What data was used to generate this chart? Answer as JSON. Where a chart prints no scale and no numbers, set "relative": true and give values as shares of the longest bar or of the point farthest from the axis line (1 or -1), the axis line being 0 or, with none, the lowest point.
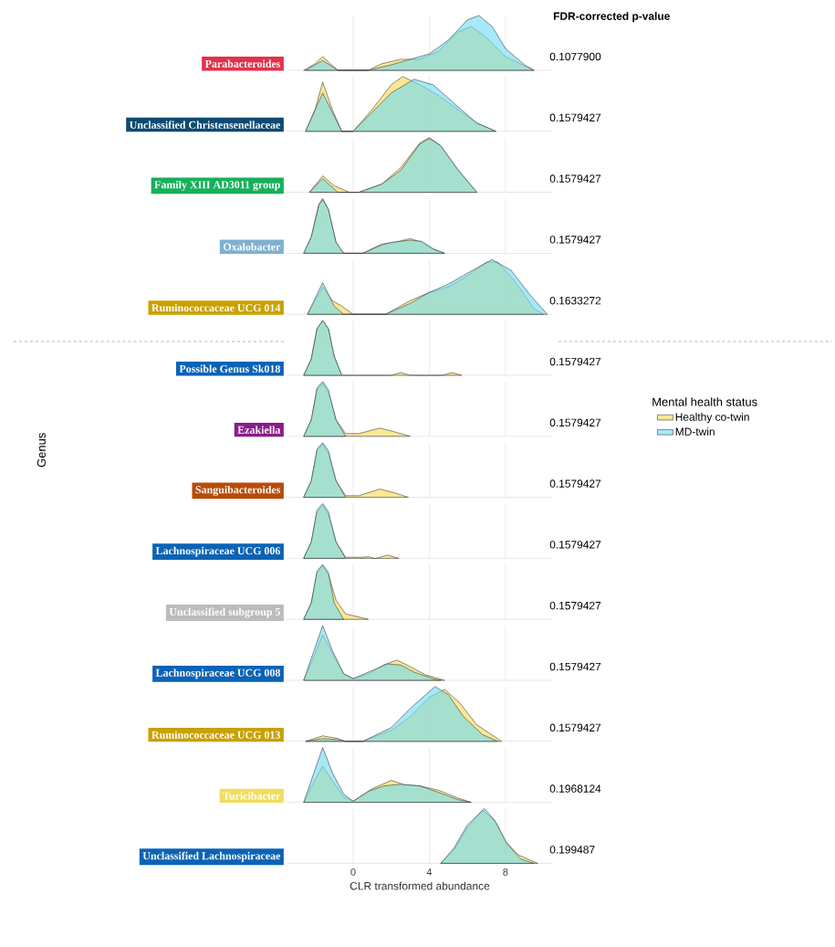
{
  "chart_data": [
    {
      "type": "area",
      "relative": true,
      "title": "Parabacteroides",
      "annotations": [
        "FDR-corrected p-value",
        "0.1077900"
      ],
      "xlim": [
        -3.5,
        10.5
      ],
      "xticks": [
        0,
        4,
        8
      ],
      "grid": "x",
      "tick_labels": false,
      "series": [
        {
          "color": "#fbd94f",
          "x": [
            -2.6,
            -2,
            -1.6,
            -1.2,
            -0.8,
            0.8,
            1.5,
            2.5,
            3.5,
            4.5,
            5.5,
            6.2,
            7,
            8,
            9.5
          ],
          "values": [
            0,
            0.12,
            0.25,
            0.12,
            0,
            0,
            0.12,
            0.2,
            0.2,
            0.35,
            0.7,
            0.8,
            0.6,
            0.25,
            0
          ]
        },
        {
          "color": "#6fdcf5",
          "x": [
            -2.5,
            -1.6,
            -0.8,
            0.8,
            2,
            3,
            4,
            5,
            6,
            6.6,
            7.3,
            8,
            9,
            9.5
          ],
          "values": [
            0,
            0.18,
            0,
            0,
            0.1,
            0.2,
            0.3,
            0.55,
            0.92,
            1,
            0.8,
            0.4,
            0.1,
            0
          ]
        }
      ]
    },
    {
      "type": "area",
      "relative": true,
      "title": "Unclassified Christensenellaceae",
      "annotations": [
        "0.1579427"
      ],
      "xlim": [
        -3.5,
        10.5
      ],
      "xticks": [
        0,
        4,
        8
      ],
      "grid": "x",
      "tick_labels": false,
      "series": [
        {
          "color": "#fbd94f",
          "x": [
            -2.5,
            -2,
            -1.6,
            -1.1,
            -0.6,
            0,
            1,
            2,
            2.6,
            3.5,
            4.5,
            5.5,
            6.5,
            7.5
          ],
          "values": [
            0,
            0.4,
            0.9,
            0.4,
            0,
            0,
            0.4,
            0.85,
            1,
            0.85,
            0.65,
            0.4,
            0.15,
            0
          ]
        },
        {
          "color": "#6fdcf5",
          "x": [
            -2.5,
            -1.6,
            -0.6,
            0,
            1,
            2,
            3.2,
            4.2,
            5.5,
            6.5,
            7.5
          ],
          "values": [
            0,
            0.7,
            0,
            0,
            0.35,
            0.7,
            0.95,
            0.85,
            0.45,
            0.15,
            0
          ]
        }
      ]
    },
    {
      "type": "area",
      "relative": true,
      "title": "Family XIII AD3011 group",
      "annotations": [
        "0.1579427"
      ],
      "xlim": [
        -3.5,
        10.5
      ],
      "xticks": [
        0,
        4,
        8
      ],
      "grid": "x",
      "tick_labels": false,
      "series": [
        {
          "color": "#fbd94f",
          "x": [
            -2.3,
            -1.6,
            -1,
            -0.2,
            0.3,
            1.5,
            2.5,
            3.5,
            4,
            4.6,
            5.5,
            6.5
          ],
          "values": [
            0,
            0.3,
            0.12,
            0,
            0,
            0.15,
            0.45,
            0.9,
            1,
            0.85,
            0.4,
            0
          ]
        },
        {
          "color": "#6fdcf5",
          "x": [
            -2.3,
            -1.6,
            -0.8,
            0.3,
            1.5,
            2.5,
            3.5,
            4,
            4.6,
            5.5,
            6.5
          ],
          "values": [
            0,
            0.25,
            0,
            0,
            0.15,
            0.4,
            0.88,
            0.98,
            0.85,
            0.42,
            0
          ]
        }
      ]
    },
    {
      "type": "area",
      "relative": true,
      "title": "Oxalobacter",
      "annotations": [
        "0.1579427"
      ],
      "xlim": [
        -3.5,
        10.5
      ],
      "xticks": [
        0,
        4,
        8
      ],
      "grid": "x",
      "tick_labels": false,
      "series": [
        {
          "color": "#fbd94f",
          "x": [
            -2.6,
            -2.2,
            -1.8,
            -1.6,
            -1.3,
            -0.9,
            -0.5,
            0.5,
            1.5,
            2.2,
            3,
            3.6,
            4.2,
            4.8
          ],
          "values": [
            0,
            0.3,
            0.9,
            1,
            0.8,
            0.2,
            0,
            0,
            0.17,
            0.2,
            0.27,
            0.2,
            0.08,
            0
          ]
        },
        {
          "color": "#6fdcf5",
          "x": [
            -2.6,
            -2.2,
            -1.8,
            -1.6,
            -1.3,
            -0.9,
            -0.5,
            0.5,
            1.5,
            2,
            3,
            3.6,
            4.2,
            4.8
          ],
          "values": [
            0,
            0.3,
            0.88,
            0.98,
            0.8,
            0.2,
            0,
            0,
            0.15,
            0.2,
            0.24,
            0.22,
            0.08,
            0
          ]
        }
      ]
    },
    {
      "type": "area",
      "relative": true,
      "title": "Ruminococcaceae UCG 014",
      "annotations": [
        "0.1633272"
      ],
      "xlim": [
        -3.5,
        10.5
      ],
      "xticks": [
        0,
        4,
        8
      ],
      "grid": "x",
      "tick_labels": false,
      "series": [
        {
          "color": "#fbd94f",
          "x": [
            -2.4,
            -1.6,
            -1.1,
            -0.6,
            0,
            1.7,
            3,
            4,
            5,
            6,
            7,
            7.6,
            8.5,
            9.5,
            10
          ],
          "values": [
            0,
            0.5,
            0.25,
            0.15,
            0,
            0,
            0.25,
            0.4,
            0.5,
            0.7,
            0.95,
            0.95,
            0.6,
            0.1,
            0
          ]
        },
        {
          "color": "#6fdcf5",
          "x": [
            -2.4,
            -1.6,
            -1,
            -0.5,
            1.7,
            3,
            4,
            5,
            6,
            7.3,
            8.3,
            9.3,
            10.2
          ],
          "values": [
            0,
            0.58,
            0.15,
            0,
            0,
            0.2,
            0.4,
            0.55,
            0.75,
            1,
            0.8,
            0.35,
            0
          ]
        }
      ]
    },
    {
      "type": "area",
      "relative": true,
      "title": "Possible Genus Sk018",
      "annotations": [
        "0.1579427"
      ],
      "xlim": [
        -3.5,
        10.5
      ],
      "xticks": [
        0,
        4,
        8
      ],
      "grid": "x",
      "tick_labels": false,
      "series": [
        {
          "color": "#fbd94f",
          "x": [
            -2.6,
            -2.2,
            -1.9,
            -1.6,
            -1.3,
            -1,
            -0.6,
            2,
            2.5,
            3,
            4.7,
            5.2,
            5.7
          ],
          "values": [
            0,
            0.3,
            0.85,
            1,
            0.85,
            0.35,
            0,
            0,
            0.05,
            0,
            0,
            0.05,
            0
          ]
        },
        {
          "color": "#6fdcf5",
          "x": [
            -2.6,
            -2.2,
            -1.9,
            -1.6,
            -1.3,
            -1,
            -0.6
          ],
          "values": [
            0,
            0.3,
            0.85,
            1,
            0.85,
            0.35,
            0
          ]
        }
      ]
    },
    {
      "type": "area",
      "relative": true,
      "title": "Ezakiella",
      "annotations": [
        "0.1579427"
      ],
      "ylabel": "Genus",
      "legend_title": "Mental health status",
      "legend": "right",
      "xlim": [
        -3.5,
        10.5
      ],
      "xticks": [
        0,
        4,
        8
      ],
      "grid": "x",
      "tick_labels": false,
      "series": [
        {
          "name": "Healthy co-twin",
          "color": "#fbd94f",
          "x": [
            -2.6,
            -2.2,
            -1.9,
            -1.6,
            -1.3,
            -0.9,
            -0.4,
            0.3,
            1.4,
            2.2,
            3
          ],
          "values": [
            0,
            0.3,
            0.85,
            0.97,
            0.8,
            0.3,
            0.05,
            0.05,
            0.15,
            0.08,
            0
          ]
        },
        {
          "name": "MD-twin",
          "color": "#6fdcf5",
          "x": [
            -2.6,
            -2.2,
            -1.9,
            -1.6,
            -1.3,
            -0.9,
            -0.4
          ],
          "values": [
            0,
            0.3,
            0.88,
            1,
            0.85,
            0.3,
            0
          ]
        }
      ]
    },
    {
      "type": "area",
      "relative": true,
      "title": "Sanguibacteroides",
      "annotations": [
        "0.1579427"
      ],
      "xlim": [
        -3.5,
        10.5
      ],
      "xticks": [
        0,
        4,
        8
      ],
      "grid": "x",
      "tick_labels": false,
      "series": [
        {
          "color": "#fbd94f",
          "x": [
            -2.6,
            -2.2,
            -1.9,
            -1.6,
            -1.3,
            -0.9,
            -0.4,
            0.3,
            1.4,
            2.2,
            2.9
          ],
          "values": [
            0,
            0.3,
            0.85,
            0.97,
            0.8,
            0.3,
            0.03,
            0.03,
            0.15,
            0.08,
            0
          ]
        },
        {
          "color": "#6fdcf5",
          "x": [
            -2.6,
            -2.2,
            -1.9,
            -1.6,
            -1.3,
            -0.9,
            -0.4
          ],
          "values": [
            0,
            0.3,
            0.88,
            1,
            0.85,
            0.3,
            0
          ]
        }
      ]
    },
    {
      "type": "area",
      "relative": true,
      "title": "Lachnospiraceae UCG 006",
      "annotations": [
        "0.1579427"
      ],
      "xlim": [
        -3.5,
        10.5
      ],
      "xticks": [
        0,
        4,
        8
      ],
      "grid": "x",
      "tick_labels": false,
      "series": [
        {
          "color": "#fbd94f",
          "x": [
            -2.6,
            -2.2,
            -1.9,
            -1.6,
            -1.3,
            -0.9,
            -0.4,
            0.5,
            0.8,
            1.1,
            1.2,
            1.8,
            2.4
          ],
          "values": [
            0,
            0.3,
            0.85,
            0.97,
            0.8,
            0.3,
            0.02,
            0.02,
            0.03,
            0,
            0,
            0.06,
            0
          ]
        },
        {
          "color": "#6fdcf5",
          "x": [
            -2.6,
            -2.2,
            -1.9,
            -1.6,
            -1.3,
            -0.9,
            -0.4
          ],
          "values": [
            0,
            0.3,
            0.88,
            1,
            0.85,
            0.3,
            0
          ]
        }
      ]
    },
    {
      "type": "area",
      "relative": true,
      "title": "Unclassified subgroup 5",
      "annotations": [
        "0.1579427"
      ],
      "xlim": [
        -3.5,
        10.5
      ],
      "xticks": [
        0,
        4,
        8
      ],
      "grid": "x",
      "tick_labels": false,
      "series": [
        {
          "color": "#fbd94f",
          "x": [
            -2.6,
            -2.2,
            -1.9,
            -1.6,
            -1.3,
            -0.9,
            -0.4,
            0.2,
            0.8
          ],
          "values": [
            0,
            0.3,
            0.85,
            0.98,
            0.82,
            0.35,
            0.1,
            0.05,
            0
          ]
        },
        {
          "color": "#6fdcf5",
          "x": [
            -2.6,
            -2.2,
            -1.9,
            -1.6,
            -1.3,
            -1,
            -0.5
          ],
          "values": [
            0,
            0.3,
            0.88,
            1,
            0.85,
            0.3,
            0
          ]
        }
      ]
    },
    {
      "type": "area",
      "relative": true,
      "title": "Lachnospiraceae UCG 008",
      "annotations": [
        "0.1579427"
      ],
      "xlim": [
        -3.5,
        10.5
      ],
      "xticks": [
        0,
        4,
        8
      ],
      "grid": "x",
      "tick_labels": false,
      "series": [
        {
          "color": "#fbd94f",
          "x": [
            -2.6,
            -2.1,
            -1.6,
            -1.1,
            -0.5,
            0,
            0.8,
            1.6,
            2.3,
            3,
            3.8,
            4.8
          ],
          "values": [
            0,
            0.4,
            0.83,
            0.5,
            0.12,
            0.03,
            0.12,
            0.28,
            0.37,
            0.25,
            0.1,
            0
          ]
        },
        {
          "color": "#6fdcf5",
          "x": [
            -2.6,
            -2.1,
            -1.6,
            -1.1,
            -0.5,
            0,
            0.8,
            1.8,
            2.5,
            3.2,
            4.2,
            4.6
          ],
          "values": [
            0,
            0.5,
            1,
            0.55,
            0.12,
            0.03,
            0.15,
            0.3,
            0.28,
            0.15,
            0.03,
            0
          ]
        }
      ]
    },
    {
      "type": "area",
      "relative": true,
      "title": "Ruminococcaceae UCG 013",
      "annotations": [
        "0.1579427"
      ],
      "xlim": [
        -3.5,
        10.5
      ],
      "xticks": [
        0,
        4,
        8
      ],
      "grid": "x",
      "tick_labels": false,
      "series": [
        {
          "color": "#fbd94f",
          "x": [
            -2.5,
            -1.6,
            -0.8,
            -0.4,
            0.5,
            2,
            3,
            4,
            4.8,
            5.6,
            6.5,
            7.8
          ],
          "values": [
            0,
            0.1,
            0.05,
            0,
            0,
            0.2,
            0.45,
            0.8,
            0.95,
            0.7,
            0.3,
            0
          ]
        },
        {
          "color": "#6fdcf5",
          "x": [
            -2.5,
            -1.6,
            -0.8,
            -0.4,
            0.5,
            2,
            3,
            4.3,
            5,
            5.8,
            6.8,
            7.6
          ],
          "values": [
            0,
            0.05,
            0.03,
            0,
            0,
            0.25,
            0.6,
            1,
            0.85,
            0.45,
            0.12,
            0
          ]
        }
      ]
    },
    {
      "type": "area",
      "relative": true,
      "title": "Turicibacter",
      "annotations": [
        "0.1968124"
      ],
      "xlim": [
        -3.5,
        10.5
      ],
      "xticks": [
        0,
        4,
        8
      ],
      "grid": "x",
      "tick_labels": false,
      "series": [
        {
          "color": "#fbd94f",
          "x": [
            -2.6,
            -2.1,
            -1.6,
            -1.1,
            -0.5,
            0,
            1,
            2,
            2.7,
            3.5,
            4.5,
            5.5,
            6.2
          ],
          "values": [
            0,
            0.35,
            0.66,
            0.4,
            0.1,
            0.02,
            0.25,
            0.4,
            0.32,
            0.3,
            0.22,
            0.08,
            0
          ]
        },
        {
          "color": "#6fdcf5",
          "x": [
            -2.6,
            -2.1,
            -1.6,
            -1.1,
            -0.5,
            0,
            0.8,
            1.6,
            2.5,
            3.5,
            4.5,
            5.5,
            6.2
          ],
          "values": [
            0,
            0.5,
            1,
            0.55,
            0.15,
            0.02,
            0.2,
            0.3,
            0.33,
            0.3,
            0.18,
            0.05,
            0
          ]
        }
      ]
    },
    {
      "type": "area",
      "relative": true,
      "title": "Unclassified Lachnospiraceae",
      "annotations": [
        "0.199487"
      ],
      "xlabel": "CLR transformed abundance",
      "xlim": [
        -3.5,
        10.5
      ],
      "xticks": [
        0,
        4,
        8
      ],
      "grid": "x",
      "tick_labels": "x",
      "series": [
        {
          "color": "#fbd94f",
          "x": [
            4.6,
            5.3,
            6,
            6.8,
            7.4,
            8,
            8.7,
            9.7
          ],
          "values": [
            0,
            0.25,
            0.65,
            0.97,
            0.8,
            0.4,
            0.15,
            0
          ]
        },
        {
          "color": "#6fdcf5",
          "x": [
            4.6,
            5.3,
            6,
            6.9,
            7.5,
            8.1,
            8.8,
            9.5
          ],
          "values": [
            0,
            0.28,
            0.7,
            1,
            0.75,
            0.35,
            0.08,
            0
          ]
        }
      ]
    }
  ]
}
